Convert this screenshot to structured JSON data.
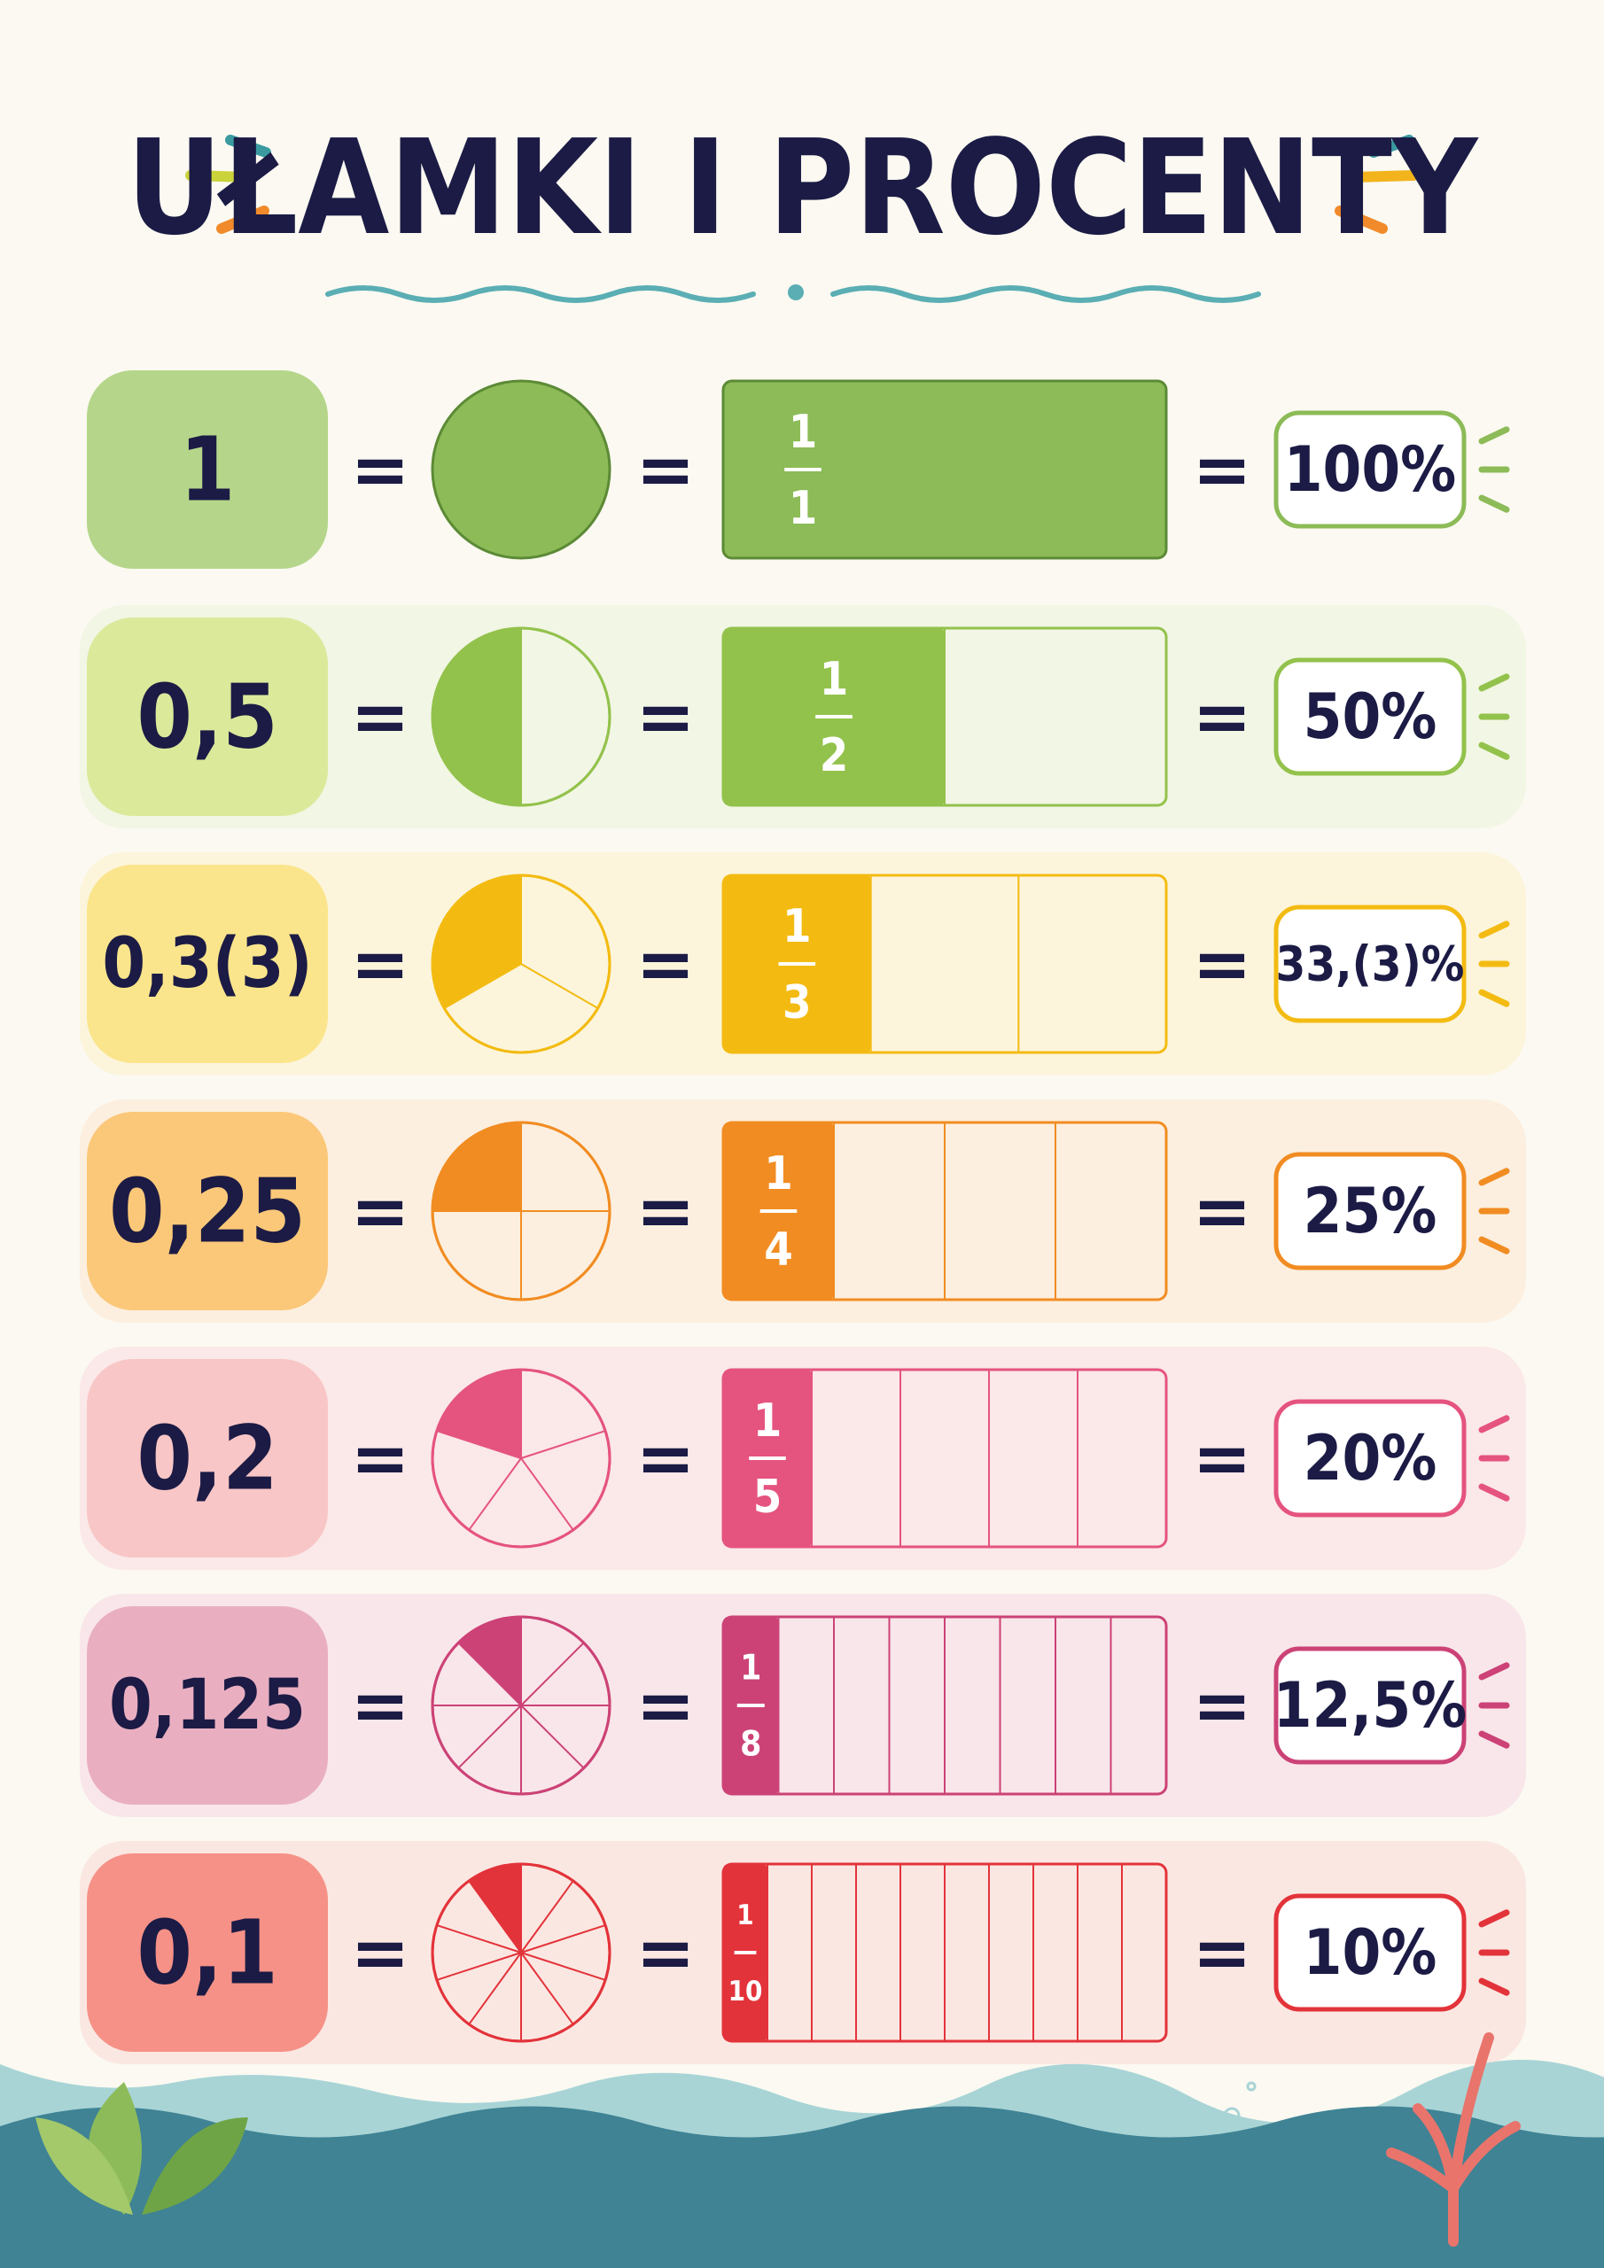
{
  "title": "UŁAMKI I PROCENTY",
  "equals": "=",
  "rows": [
    {
      "decimal": "1",
      "numerator": 1,
      "denominator": 1,
      "percent": "100%",
      "color": "#8cbb57",
      "box_color": "#b5d68a",
      "tint": "#fbf9f1"
    },
    {
      "decimal": "0,5",
      "numerator": 1,
      "denominator": 2,
      "percent": "50%",
      "color": "#93c24c",
      "box_color": "#dbe99b",
      "tint": "#f2f6e4"
    },
    {
      "decimal": "0,3(3)",
      "numerator": 1,
      "denominator": 3,
      "percent": "33,(3)%",
      "color": "#f3bb12",
      "box_color": "#fbe58c",
      "tint": "#fcf5dc"
    },
    {
      "decimal": "0,25",
      "numerator": 1,
      "denominator": 4,
      "percent": "25%",
      "color": "#f18c22",
      "box_color": "#fbc879",
      "tint": "#fcefdf"
    },
    {
      "decimal": "0,2",
      "numerator": 1,
      "denominator": 5,
      "percent": "20%",
      "color": "#e5537f",
      "box_color": "#f8c6c6",
      "tint": "#fbe8e8"
    },
    {
      "decimal": "0,125",
      "numerator": 1,
      "denominator": 8,
      "percent": "12,5%",
      "color": "#cc4276",
      "box_color": "#e9afc1",
      "tint": "#f9e6ea"
    },
    {
      "decimal": "0,1",
      "numerator": 1,
      "denominator": 10,
      "percent": "10%",
      "color": "#e3333a",
      "box_color": "#f69187",
      "tint": "#fbe7e2"
    }
  ]
}
